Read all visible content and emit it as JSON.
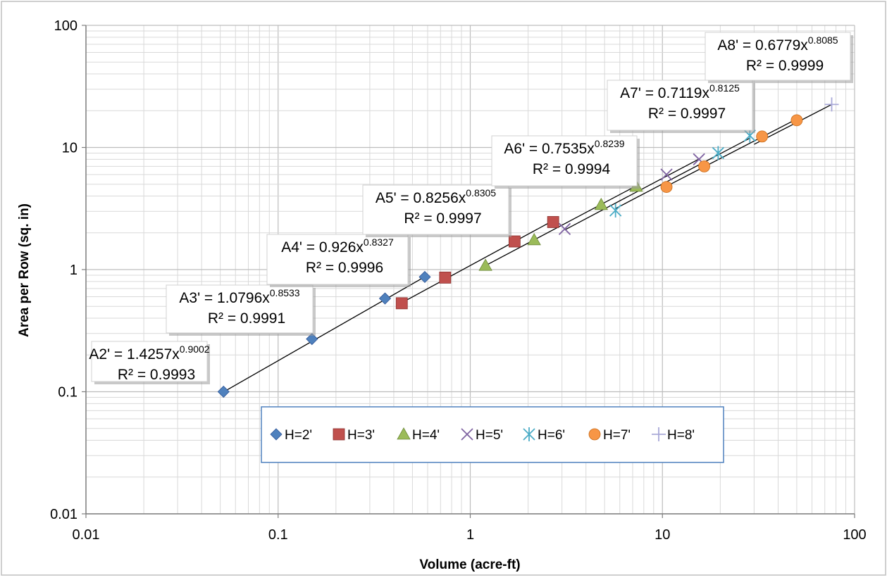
{
  "chart_data": {
    "type": "scatter",
    "title": "",
    "xlabel": "Volume (acre-ft)",
    "ylabel": "Area per Row (sq. in)",
    "xscale": "log",
    "yscale": "log",
    "xlim": [
      0.01,
      100
    ],
    "ylim": [
      0.01,
      100
    ],
    "x_ticks": [
      "0.01",
      "0.1",
      "1",
      "10",
      "100"
    ],
    "y_ticks": [
      "0.01",
      "0.1",
      "1",
      "10",
      "100"
    ],
    "grid": "major and minor",
    "legend_position": "center",
    "series": [
      {
        "name": "H=2'",
        "marker": "diamond",
        "color": "#4f81bd",
        "x": [
          0.052,
          0.15,
          0.36,
          0.58
        ],
        "y": [
          0.1,
          0.27,
          0.58,
          0.87
        ],
        "fit": {
          "label": "A2' = 1.4257x",
          "exponent_label": "0.9002",
          "r2_label": "R² = 0.9993",
          "a": 1.4257,
          "b": 0.9002
        }
      },
      {
        "name": "H=3'",
        "marker": "square",
        "color": "#c0504d",
        "x": [
          0.44,
          0.74,
          1.7,
          2.7
        ],
        "y": [
          0.53,
          0.86,
          1.7,
          2.45
        ],
        "fit": {
          "label": "A3' = 1.0796x",
          "exponent_label": "0.8533",
          "r2_label": "R² = 0.9991",
          "a": 1.0796,
          "b": 0.8533
        }
      },
      {
        "name": "H=4'",
        "marker": "triangle",
        "color": "#9bbb59",
        "x": [
          1.2,
          2.15,
          4.8,
          7.3
        ],
        "y": [
          1.08,
          1.75,
          3.4,
          4.8
        ],
        "fit": {
          "label": "A4' = 0.926x",
          "exponent_label": "0.8327",
          "r2_label": "R² = 0.9996",
          "a": 0.926,
          "b": 0.8327
        }
      },
      {
        "name": "H=5'",
        "marker": "x",
        "color": "#8064a2",
        "x": [
          3.1,
          10.5,
          15.5
        ],
        "y": [
          2.15,
          6.0,
          8.0
        ],
        "fit": {
          "label": "A5' = 0.8256x",
          "exponent_label": "0.8305",
          "r2_label": "R² = 0.9997",
          "a": 0.8256,
          "b": 0.8305
        }
      },
      {
        "name": "H=6'",
        "marker": "star",
        "color": "#4bacc6",
        "x": [
          5.7,
          19.5,
          28.5
        ],
        "y": [
          3.05,
          9.0,
          12.5
        ],
        "fit": {
          "label": "A6' = 0.7535x",
          "exponent_label": "0.8239",
          "r2_label": "R² = 0.9994",
          "a": 0.7535,
          "b": 0.8239
        }
      },
      {
        "name": "H=7'",
        "marker": "circle",
        "color": "#f79646",
        "x": [
          10.5,
          16.5,
          33.0,
          50.0
        ],
        "y": [
          4.75,
          7.0,
          12.3,
          16.7
        ],
        "fit": {
          "label": "A7' = 0.7119x",
          "exponent_label": "0.8125",
          "r2_label": "R² = 0.9997",
          "a": 0.7119,
          "b": 0.8125
        }
      },
      {
        "name": "H=8'",
        "marker": "plus",
        "color": "#a9a9d8",
        "x": [
          76.0
        ],
        "y": [
          22.5
        ],
        "fit": {
          "label": "A8' = 0.6779x",
          "exponent_label": "0.8085",
          "r2_label": "R² = 0.9999",
          "a": 0.6779,
          "b": 0.8085
        }
      }
    ]
  }
}
